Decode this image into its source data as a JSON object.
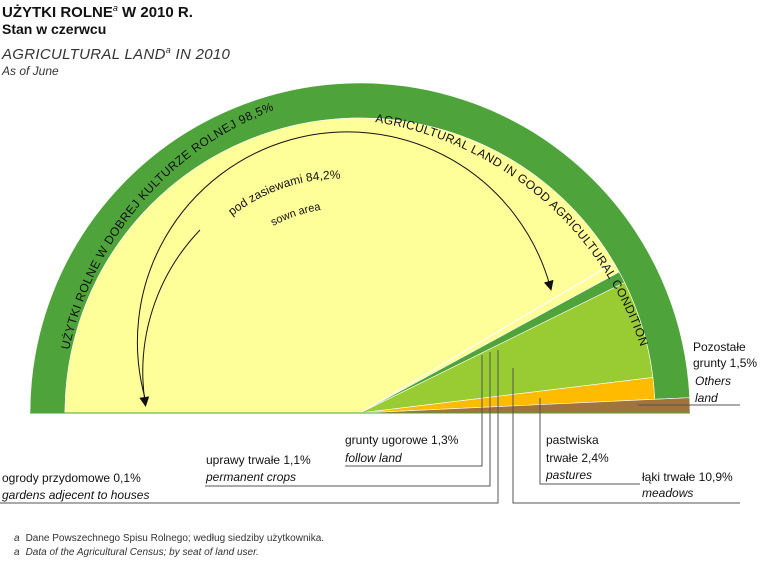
{
  "title": {
    "pl_main": "UŻYTKI  ROLNE",
    "pl_sup": "a",
    "pl_year": "  W  2010 R.",
    "pl_sub": "Stan w czerwcu",
    "en_main": "AGRICULTURAL  LAND",
    "en_sup": "a",
    "en_year": "  IN 2010",
    "en_sub": "As of June"
  },
  "labels": {
    "outer_left": "UŻYTKI ROLNE W DOBREJ KULTURZE ROLNEJ 98,5%",
    "outer_right": "AGRICULTURAL LAND IN GOOD AGRICULTURAL CONDITIONS",
    "sown_pl": "pod zasiewami 84,2%",
    "sown_en": "sown area",
    "others_pl1": "Pozostałe",
    "others_pl2": "grunty 1,5%",
    "others_en1": "Others",
    "others_en2": "land",
    "fallow_pl": "grunty ugorowe 1,3%",
    "fallow_en": "follow land",
    "crops_pl": "uprawy trwałe 1,1%",
    "crops_en": "permanent crops",
    "gardens_pl": "ogrody przydomowe 0,1%",
    "gardens_en": "gardens adjecent to houses",
    "pastures_pl1": "pastwiska",
    "pastures_pl2": "trwałe 2,4%",
    "pastures_en": "pastures",
    "meadows_pl": "łąki trwałe 10,9%",
    "meadows_en": "meadows"
  },
  "footnotes": {
    "pl_mark": "a",
    "pl": "Dane Powszechnego Spisu Rolnego; według siedziby użytkownika.",
    "en_mark": "a",
    "en": "Data of the Agricultural Census; by seat of land user."
  },
  "colors": {
    "good_condition": "#4ea33a",
    "sown": "#ffff99",
    "fallow": "#4ea33a",
    "permanent_crops": "#ffff99",
    "gardens": "#e8e8b0",
    "meadows": "#99cc33",
    "pastures": "#ffbb00",
    "others": "#a0743a"
  },
  "chart_data": {
    "type": "pie",
    "subtype": "semicircle",
    "total": {
      "label": "UŻYTKI ROLNE W DOBREJ KULTURZE ROLNEJ / AGRICULTURAL LAND IN GOOD AGRICULTURAL CONDITIONS",
      "value": 98.5
    },
    "slices": [
      {
        "label": "pod zasiewami / sown area",
        "value": 84.2
      },
      {
        "label": "ogrody przydomowe / gardens adjecent to houses",
        "value": 0.1
      },
      {
        "label": "uprawy trwałe / permanent crops",
        "value": 1.1
      },
      {
        "label": "grunty ugorowe / follow land",
        "value": 1.3
      },
      {
        "label": "łąki trwałe / meadows",
        "value": 10.9
      },
      {
        "label": "pastwiska trwałe / pastures",
        "value": 2.4
      },
      {
        "label": "Pozostałe grunty / Others land",
        "value": 1.5
      }
    ]
  }
}
